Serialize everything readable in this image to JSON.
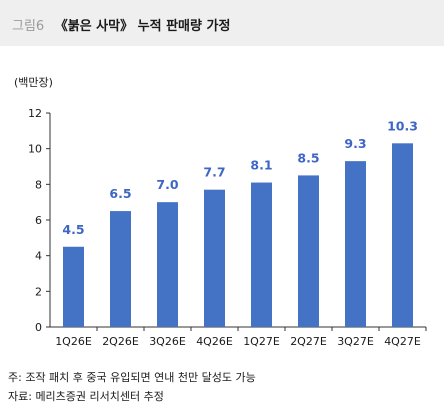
{
  "header": {
    "figure_number": "그림6",
    "title": "《붉은 사막》 누적 판매량 가정"
  },
  "notes": {
    "note": "주: 조작 패치 후 중국 유입되면 연내 천만 달성도 가능",
    "source": "자료: 메리츠증권 리서치센터 추정"
  },
  "colors": {
    "bar": "#4472c4",
    "label": "#3f66c4"
  },
  "chart_data": {
    "type": "bar",
    "unit_label": "(백만장)",
    "categories": [
      "1Q26E",
      "2Q26E",
      "3Q26E",
      "4Q26E",
      "1Q27E",
      "2Q27E",
      "3Q27E",
      "4Q27E"
    ],
    "values": [
      4.5,
      6.5,
      7.0,
      7.7,
      8.1,
      8.5,
      9.3,
      10.3
    ],
    "data_labels": [
      "4.5",
      "6.5",
      "7.0",
      "7.7",
      "8.1",
      "8.5",
      "9.3",
      "10.3"
    ],
    "yticks": [
      0,
      2,
      4,
      6,
      8,
      10,
      12
    ],
    "ylim": [
      0,
      12
    ],
    "grid": false,
    "legend": "none"
  }
}
